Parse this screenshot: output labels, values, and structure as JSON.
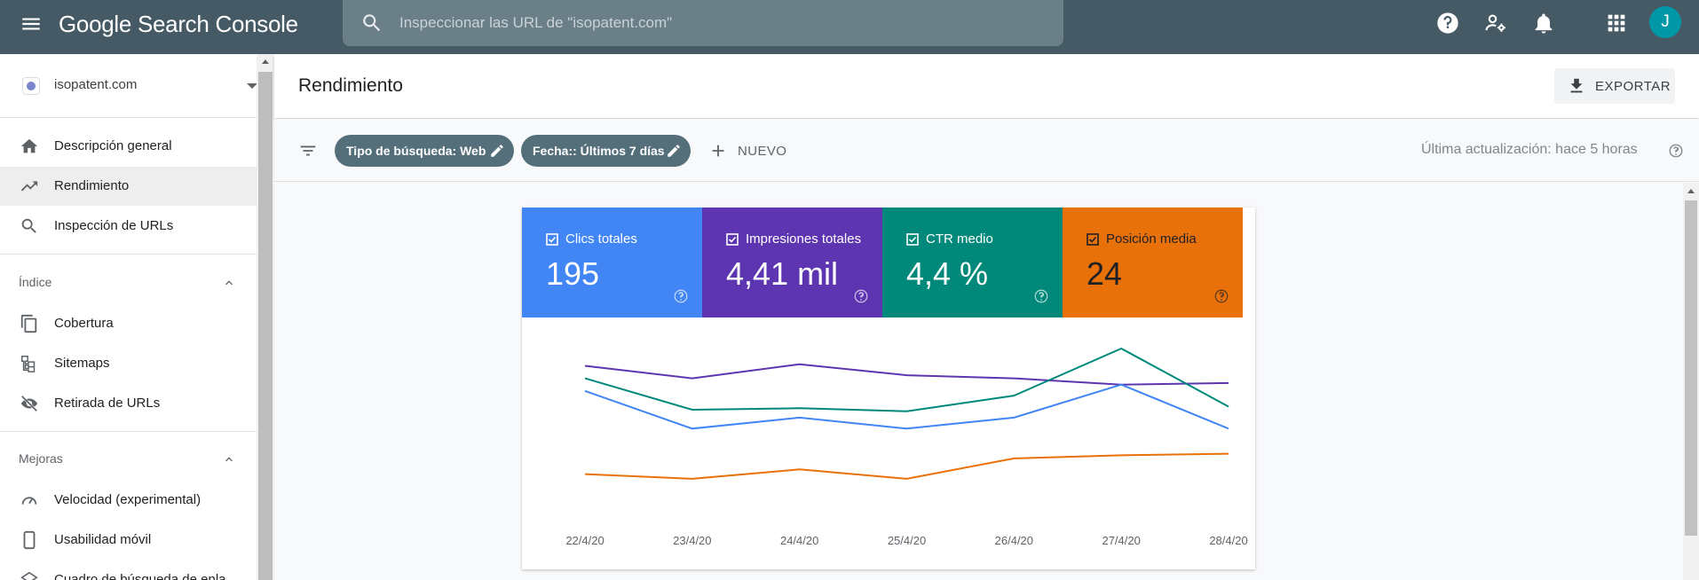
{
  "app": {
    "title": "Google Search Console",
    "search_placeholder": "Inspeccionar las URL de \"isopatent.com\"",
    "avatar_letter": "J"
  },
  "sidebar": {
    "property": "isopatent.com",
    "items_top": [
      {
        "label": "Descripción general",
        "icon": "home-icon"
      },
      {
        "label": "Rendimiento",
        "icon": "trending-up-icon",
        "active": true
      },
      {
        "label": "Inspección de URLs",
        "icon": "search-icon"
      }
    ],
    "section_index": {
      "title": "Índice",
      "items": [
        {
          "label": "Cobertura",
          "icon": "coverage-icon"
        },
        {
          "label": "Sitemaps",
          "icon": "sitemap-icon"
        },
        {
          "label": "Retirada de URLs",
          "icon": "hidden-eye-icon"
        }
      ]
    },
    "section_improvements": {
      "title": "Mejoras",
      "items": [
        {
          "label": "Velocidad (experimental)",
          "icon": "speed-gauge-icon"
        },
        {
          "label": "Usabilidad móvil",
          "icon": "smartphone-icon"
        },
        {
          "label": "Cuadro de búsqueda de enla...",
          "icon": "layers-icon"
        }
      ]
    }
  },
  "header": {
    "title": "Rendimiento",
    "export_label": "EXPORTAR"
  },
  "filters": {
    "chip_search_type": "Tipo de búsqueda: Web",
    "chip_date": "Fecha:: Últimos 7 días",
    "new_label": "NUEVO",
    "last_update": "Última actualización: hace 5 horas"
  },
  "metrics": [
    {
      "label": "Clics totales",
      "value": "195",
      "color": "#4285f4"
    },
    {
      "label": "Impresiones totales",
      "value": "4,41 mil",
      "color": "#5e35b1"
    },
    {
      "label": "CTR medio",
      "value": "4,4 %",
      "color": "#00897b"
    },
    {
      "label": "Posición media",
      "value": "24",
      "color": "#e8710a"
    }
  ],
  "chart_data": {
    "type": "line",
    "x": [
      "22/4/20",
      "23/4/20",
      "24/4/20",
      "25/4/20",
      "26/4/20",
      "27/4/20",
      "28/4/20"
    ],
    "y_axis_labels_visible": false,
    "grid": false,
    "series": [
      {
        "name": "Impresiones totales",
        "color": "#5e35b1",
        "relative_level": [
          0.89,
          0.81,
          0.9,
          0.83,
          0.81,
          0.77,
          0.78
        ]
      },
      {
        "name": "CTR medio",
        "color": "#00897b",
        "relative_level": [
          0.81,
          0.61,
          0.62,
          0.6,
          0.7,
          1.0,
          0.63
        ]
      },
      {
        "name": "Clics totales",
        "color": "#4285f4",
        "relative_level": [
          0.73,
          0.49,
          0.56,
          0.49,
          0.56,
          0.77,
          0.49
        ]
      },
      {
        "name": "Posición media",
        "color": "#e8710a",
        "relative_level": [
          0.2,
          0.17,
          0.23,
          0.17,
          0.3,
          0.32,
          0.33
        ]
      }
    ]
  }
}
